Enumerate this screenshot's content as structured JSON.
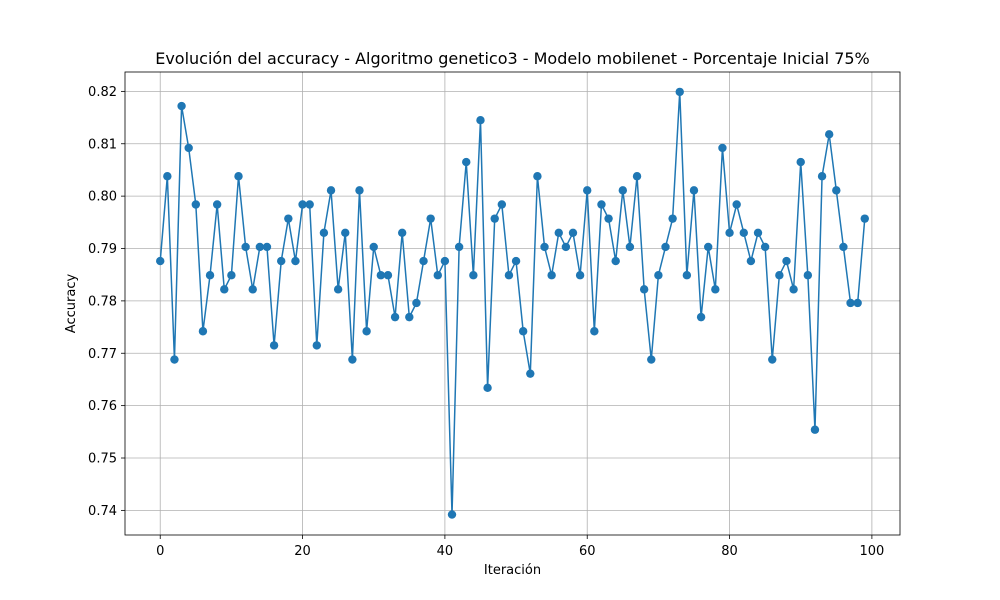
{
  "chart_data": {
    "type": "line",
    "title": "Evolución del accuracy - Algoritmo genetico3 - Modelo mobilenet - Porcentaje Inicial 75%",
    "xlabel": "Iteración",
    "ylabel": "Accuracy",
    "xlim": [
      -4.95,
      103.95
    ],
    "ylim": [
      0.7353,
      0.8237
    ],
    "xticks": [
      0,
      20,
      40,
      60,
      80,
      100
    ],
    "yticks": [
      0.74,
      0.75,
      0.76,
      0.77,
      0.78,
      0.79,
      0.8,
      0.81,
      0.82
    ],
    "ytick_labels": [
      "0.74",
      "0.75",
      "0.76",
      "0.77",
      "0.78",
      "0.79",
      "0.80",
      "0.81",
      "0.82"
    ],
    "grid": true,
    "series": [
      {
        "color": "#1f77b4",
        "marker": "circle",
        "x": [
          0,
          1,
          2,
          3,
          4,
          5,
          6,
          7,
          8,
          9,
          10,
          11,
          12,
          13,
          14,
          15,
          16,
          17,
          18,
          19,
          20,
          21,
          22,
          23,
          24,
          25,
          26,
          27,
          28,
          29,
          30,
          31,
          32,
          33,
          34,
          35,
          36,
          37,
          38,
          39,
          40,
          41,
          42,
          43,
          44,
          45,
          46,
          47,
          48,
          49,
          50,
          51,
          52,
          53,
          54,
          55,
          56,
          57,
          58,
          59,
          60,
          61,
          62,
          63,
          64,
          65,
          66,
          67,
          68,
          69,
          70,
          71,
          72,
          73,
          74,
          75,
          76,
          77,
          78,
          79,
          80,
          81,
          82,
          83,
          84,
          85,
          86,
          87,
          88,
          89,
          90,
          91,
          92,
          93,
          94,
          95,
          96,
          97,
          98,
          99
        ],
        "y": [
          0.7876,
          0.8038,
          0.7688,
          0.8172,
          0.8092,
          0.7984,
          0.7742,
          0.7849,
          0.7984,
          0.7822,
          0.7849,
          0.8038,
          0.7903,
          0.7822,
          0.7903,
          0.7903,
          0.7715,
          0.7876,
          0.7957,
          0.7876,
          0.7984,
          0.7984,
          0.7715,
          0.793,
          0.8011,
          0.7822,
          0.793,
          0.7688,
          0.8011,
          0.7742,
          0.7903,
          0.7849,
          0.7849,
          0.7769,
          0.793,
          0.7769,
          0.7796,
          0.7876,
          0.7957,
          0.7849,
          0.7876,
          0.7392,
          0.7903,
          0.8065,
          0.7849,
          0.8145,
          0.7634,
          0.7957,
          0.7984,
          0.7849,
          0.7876,
          0.7742,
          0.7661,
          0.8038,
          0.7903,
          0.7849,
          0.793,
          0.7903,
          0.793,
          0.7849,
          0.8011,
          0.7742,
          0.7984,
          0.7957,
          0.7876,
          0.8011,
          0.7903,
          0.8038,
          0.7822,
          0.7688,
          0.7849,
          0.7903,
          0.7957,
          0.8199,
          0.7849,
          0.8011,
          0.7769,
          0.7903,
          0.7822,
          0.8092,
          0.793,
          0.7984,
          0.793,
          0.7876,
          0.793,
          0.7903,
          0.7688,
          0.7849,
          0.7876,
          0.7822,
          0.8065,
          0.7849,
          0.7554,
          0.8038,
          0.8118,
          0.8011,
          0.7903,
          0.7796,
          0.7796,
          0.7957
        ]
      }
    ]
  }
}
